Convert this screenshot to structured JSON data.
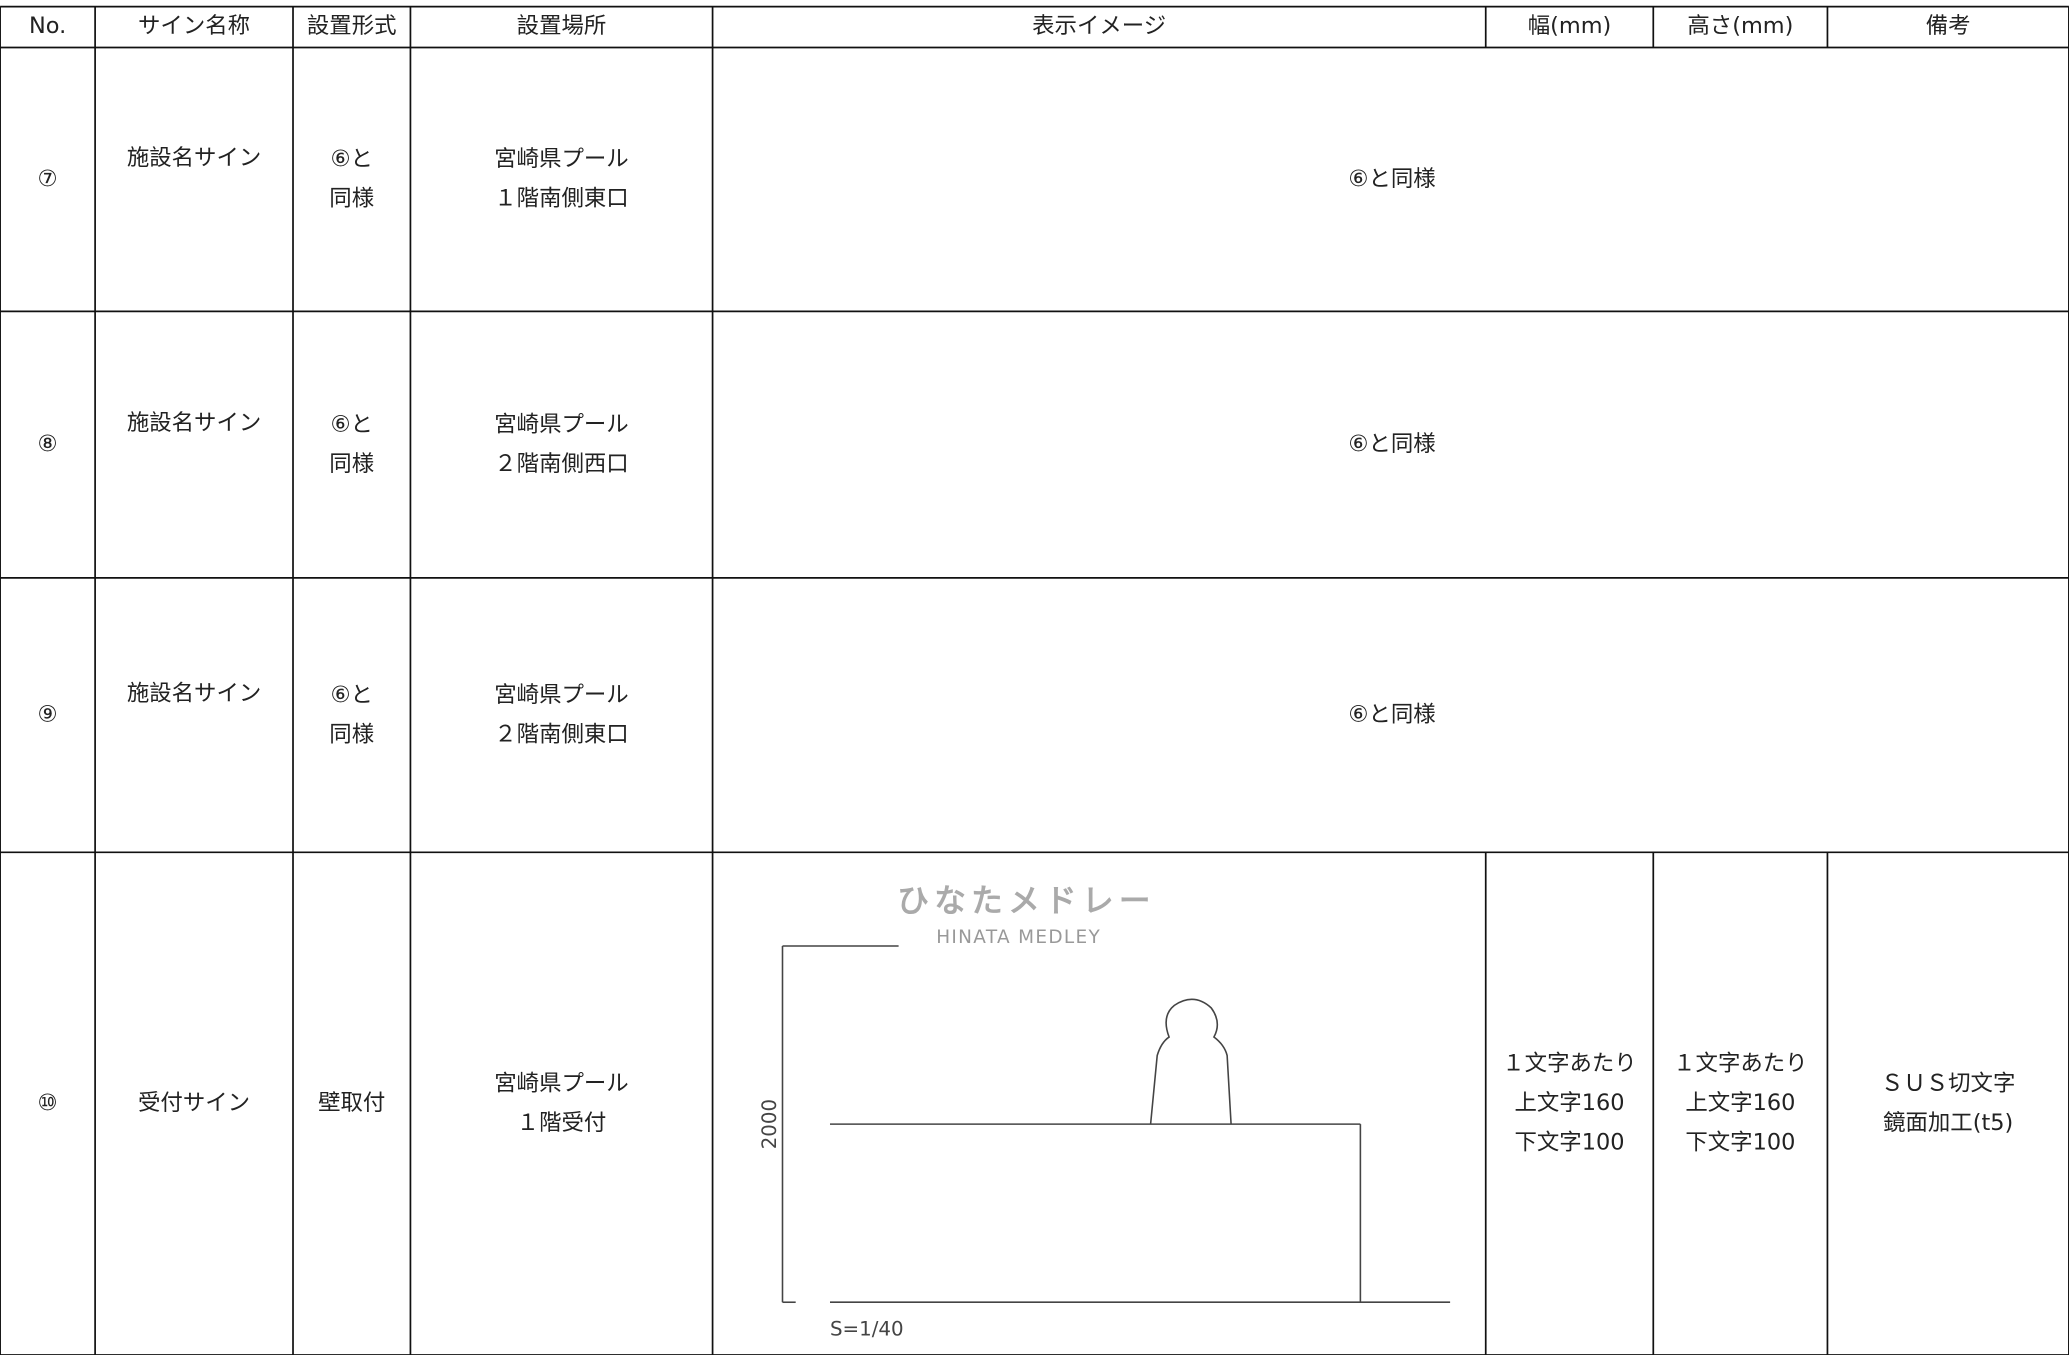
{
  "table": {
    "header": [
      "No.",
      "サイン名称",
      "設置形式",
      "設置場所",
      "表示イメージ",
      "幅(mm)",
      "高さ(mm)",
      "備考"
    ],
    "rows": [
      {
        "no": "⑦",
        "name": "施設名サイン",
        "type": [
          "⑥と",
          "同様"
        ],
        "location": [
          "宮崎県プール",
          "１階南側東口"
        ],
        "image": "⑥と同様"
      },
      {
        "no": "⑧",
        "name": "施設名サイン",
        "type": [
          "⑥と",
          "同様"
        ],
        "location": [
          "宮崎県プール",
          "２階南側西口"
        ],
        "image": "⑥と同様"
      },
      {
        "no": "⑨",
        "name": "施設名サイン",
        "type": [
          "⑥と",
          "同様"
        ],
        "location": [
          "宮崎県プール",
          "２階南側東口"
        ],
        "image": "⑥と同様"
      },
      {
        "no": "⑩",
        "name": "受付サイン",
        "type": [
          "壁取付"
        ],
        "location": [
          "宮崎県プール",
          "１階受付"
        ],
        "image": {
          "logo_ja": "ひなたメドレー",
          "logo_en": "HINATA MEDLEY",
          "dimension": "2000",
          "scale": "S=1/40"
        },
        "width": [
          "１文字あたり",
          "上文字160",
          "下文字100"
        ],
        "height": [
          "１文字あたり",
          "上文字160",
          "下文字100"
        ],
        "note": [
          "ＳＵＳ切文字",
          "鏡面加工(t5)"
        ]
      }
    ]
  }
}
